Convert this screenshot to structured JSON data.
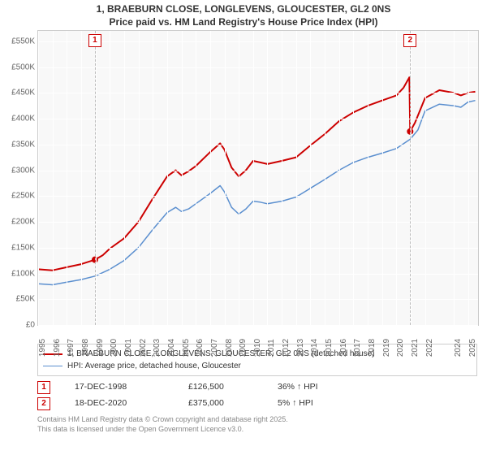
{
  "title_line1": "1, BRAEBURN CLOSE, LONGLEVENS, GLOUCESTER, GL2 0NS",
  "title_line2": "Price paid vs. HM Land Registry's House Price Index (HPI)",
  "chart": {
    "type": "line",
    "background_color": "#f8f8f8",
    "border_color": "#cccccc",
    "grid_color": "#ffffff",
    "x_min": 1995,
    "x_max": 2025.7,
    "x_ticks": [
      1995,
      1996,
      1997,
      1998,
      1999,
      2000,
      2001,
      2002,
      2003,
      2004,
      2005,
      2006,
      2007,
      2008,
      2009,
      2010,
      2011,
      2012,
      2013,
      2014,
      2015,
      2016,
      2017,
      2018,
      2019,
      2020,
      2021,
      2022,
      2024,
      2025
    ],
    "y_min": 0,
    "y_max": 570000,
    "y_ticks": [
      0,
      50000,
      100000,
      150000,
      200000,
      250000,
      300000,
      350000,
      400000,
      450000,
      500000,
      550000
    ],
    "y_tick_labels": [
      "£0",
      "£50K",
      "£100K",
      "£150K",
      "£200K",
      "£250K",
      "£300K",
      "£350K",
      "£400K",
      "£450K",
      "£500K",
      "£550K"
    ],
    "series": [
      {
        "name": "price_paid",
        "label": "1, BRAEBURN CLOSE, LONGLEVENS, GLOUCESTER, GL2 0NS (detached house)",
        "color": "#cc0000",
        "line_width": 2,
        "points": [
          [
            1995,
            108000
          ],
          [
            1996,
            106000
          ],
          [
            1997,
            112000
          ],
          [
            1998,
            118000
          ],
          [
            1998.96,
            126500
          ],
          [
            1999.5,
            135000
          ],
          [
            2000,
            148000
          ],
          [
            2001,
            168000
          ],
          [
            2002,
            200000
          ],
          [
            2003,
            245000
          ],
          [
            2004,
            288000
          ],
          [
            2004.6,
            300000
          ],
          [
            2005,
            290000
          ],
          [
            2005.5,
            298000
          ],
          [
            2006,
            308000
          ],
          [
            2007,
            335000
          ],
          [
            2007.7,
            352000
          ],
          [
            2008,
            340000
          ],
          [
            2008.5,
            305000
          ],
          [
            2009,
            288000
          ],
          [
            2009.5,
            300000
          ],
          [
            2010,
            318000
          ],
          [
            2010.5,
            315000
          ],
          [
            2011,
            312000
          ],
          [
            2012,
            318000
          ],
          [
            2013,
            325000
          ],
          [
            2014,
            348000
          ],
          [
            2015,
            370000
          ],
          [
            2016,
            395000
          ],
          [
            2017,
            412000
          ],
          [
            2018,
            425000
          ],
          [
            2019,
            435000
          ],
          [
            2020,
            445000
          ],
          [
            2020.5,
            460000
          ],
          [
            2020.9,
            480000
          ],
          [
            2020.96,
            375000
          ],
          [
            2021.3,
            392000
          ],
          [
            2022,
            440000
          ],
          [
            2023,
            455000
          ],
          [
            2024,
            450000
          ],
          [
            2024.5,
            445000
          ],
          [
            2025,
            450000
          ],
          [
            2025.5,
            452000
          ]
        ]
      },
      {
        "name": "hpi",
        "label": "HPI: Average price, detached house, Gloucester",
        "color": "#5b8fcf",
        "line_width": 1.5,
        "points": [
          [
            1995,
            80000
          ],
          [
            1996,
            78000
          ],
          [
            1997,
            83000
          ],
          [
            1998,
            88000
          ],
          [
            1999,
            95000
          ],
          [
            2000,
            108000
          ],
          [
            2001,
            125000
          ],
          [
            2002,
            150000
          ],
          [
            2003,
            185000
          ],
          [
            2004,
            218000
          ],
          [
            2004.6,
            228000
          ],
          [
            2005,
            220000
          ],
          [
            2005.5,
            225000
          ],
          [
            2006,
            235000
          ],
          [
            2007,
            255000
          ],
          [
            2007.7,
            270000
          ],
          [
            2008,
            258000
          ],
          [
            2008.5,
            228000
          ],
          [
            2009,
            215000
          ],
          [
            2009.5,
            225000
          ],
          [
            2010,
            240000
          ],
          [
            2010.5,
            238000
          ],
          [
            2011,
            235000
          ],
          [
            2012,
            240000
          ],
          [
            2013,
            248000
          ],
          [
            2014,
            265000
          ],
          [
            2015,
            282000
          ],
          [
            2016,
            300000
          ],
          [
            2017,
            315000
          ],
          [
            2018,
            325000
          ],
          [
            2019,
            333000
          ],
          [
            2020,
            342000
          ],
          [
            2020.96,
            360000
          ],
          [
            2021.5,
            378000
          ],
          [
            2022,
            415000
          ],
          [
            2023,
            428000
          ],
          [
            2024,
            425000
          ],
          [
            2024.5,
            422000
          ],
          [
            2025,
            432000
          ],
          [
            2025.5,
            435000
          ]
        ]
      }
    ],
    "sale_markers": [
      {
        "idx": "1",
        "x": 1998.96,
        "y": 126500,
        "color": "#cc0000"
      },
      {
        "idx": "2",
        "x": 2020.96,
        "y": 375000,
        "color": "#cc0000"
      }
    ]
  },
  "legend": {
    "items": [
      {
        "color": "#cc0000",
        "width": 2,
        "label": "1, BRAEBURN CLOSE, LONGLEVENS, GLOUCESTER, GL2 0NS (detached house)"
      },
      {
        "color": "#5b8fcf",
        "width": 1.5,
        "label": "HPI: Average price, detached house, Gloucester"
      }
    ]
  },
  "sales_table": [
    {
      "idx": "1",
      "date": "17-DEC-1998",
      "price": "£126,500",
      "hpi": "36% ↑ HPI"
    },
    {
      "idx": "2",
      "date": "18-DEC-2020",
      "price": "£375,000",
      "hpi": "5% ↑ HPI"
    }
  ],
  "footer_line1": "Contains HM Land Registry data © Crown copyright and database right 2025.",
  "footer_line2": "This data is licensed under the Open Government Licence v3.0."
}
